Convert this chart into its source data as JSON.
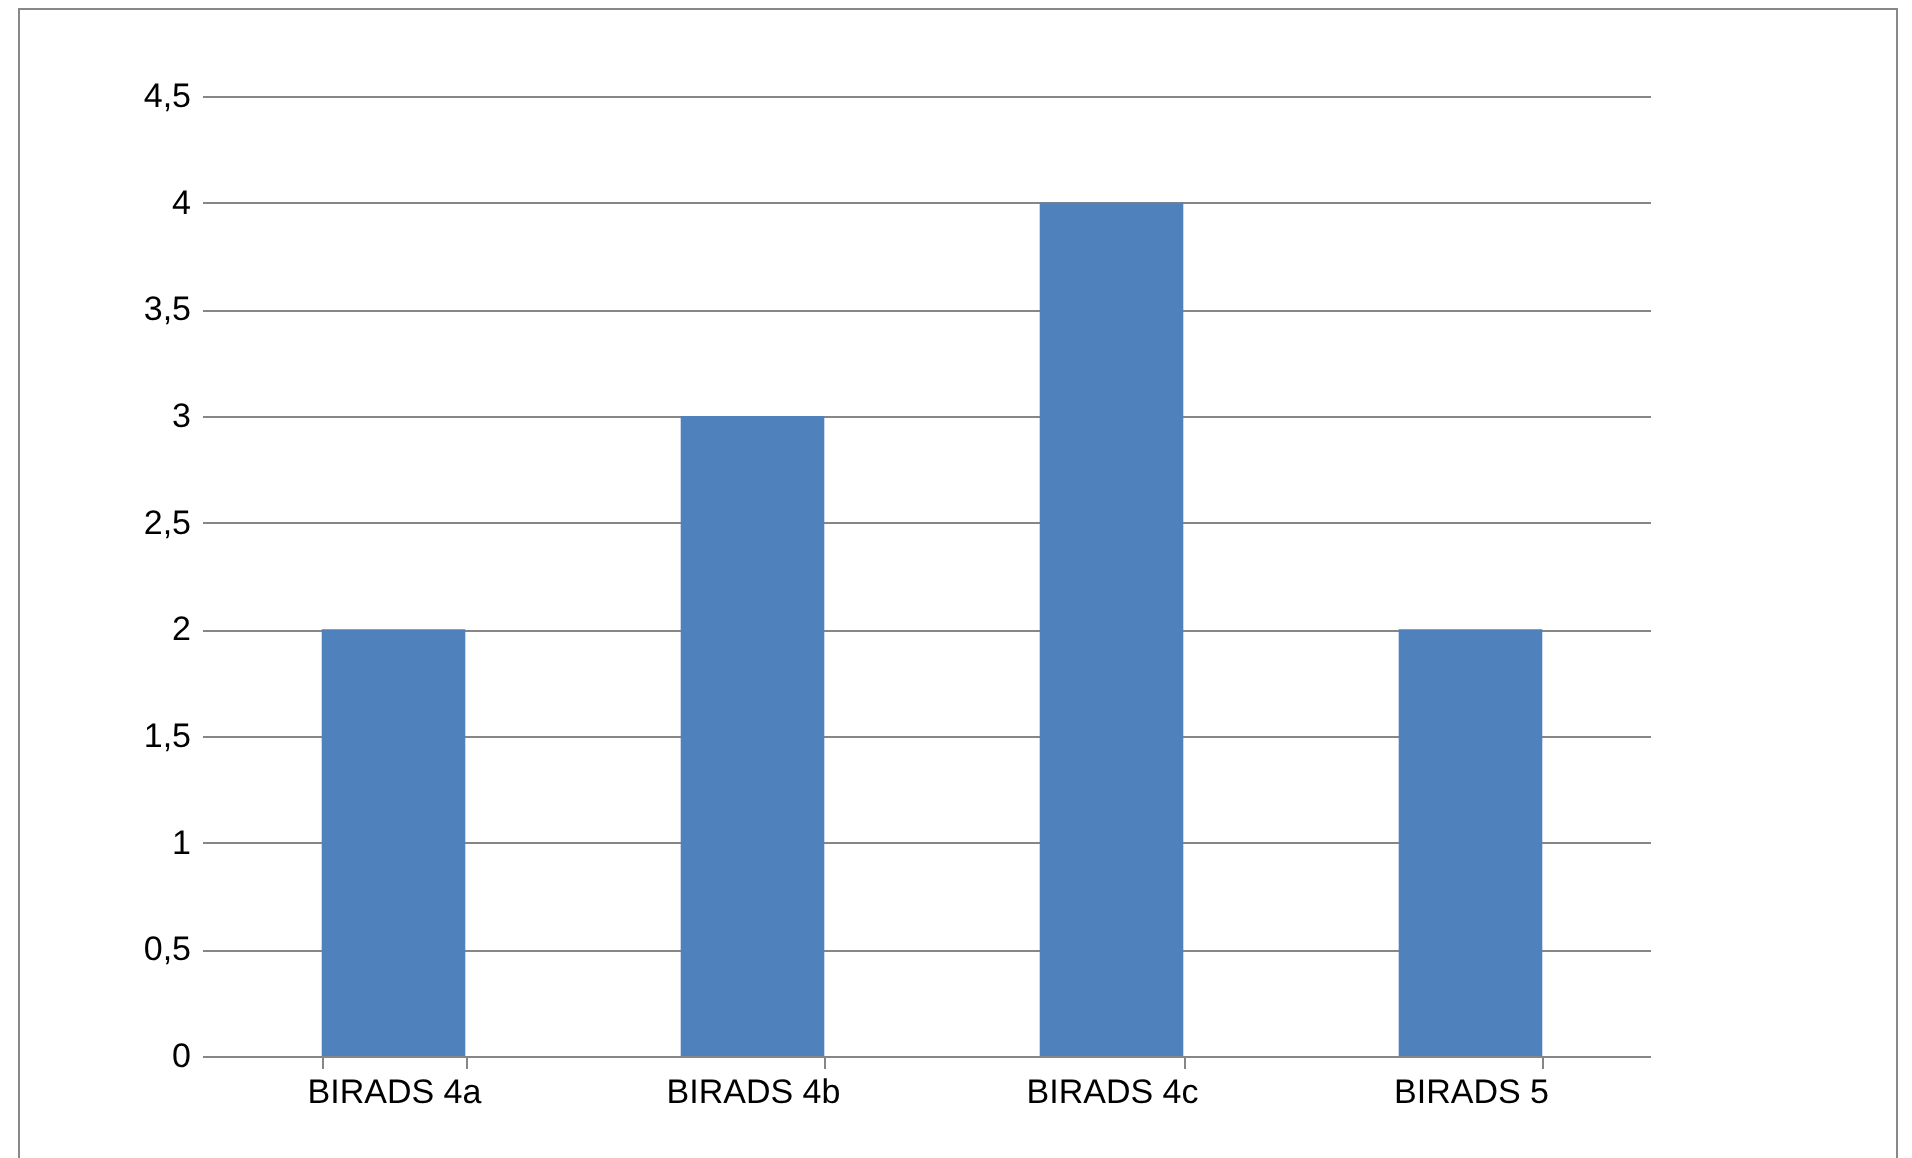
{
  "chart_data": {
    "type": "bar",
    "categories": [
      "BIRADS 4a",
      "BIRADS 4b",
      "BIRADS 4c",
      "BIRADS 5"
    ],
    "values": [
      2,
      3,
      4,
      2
    ],
    "color": "#4f81bd",
    "ylim": [
      0,
      4.5
    ],
    "yticks": [
      0,
      {
        "value": 0.5,
        "label": "0,5"
      },
      1,
      {
        "value": 1.5,
        "label": "1,5"
      },
      2,
      {
        "value": 2.5,
        "label": "2,5"
      },
      3,
      {
        "value": 3.5,
        "label": "3,5"
      },
      4,
      {
        "value": 4.5,
        "label": "4,5"
      }
    ],
    "grid": "y"
  }
}
